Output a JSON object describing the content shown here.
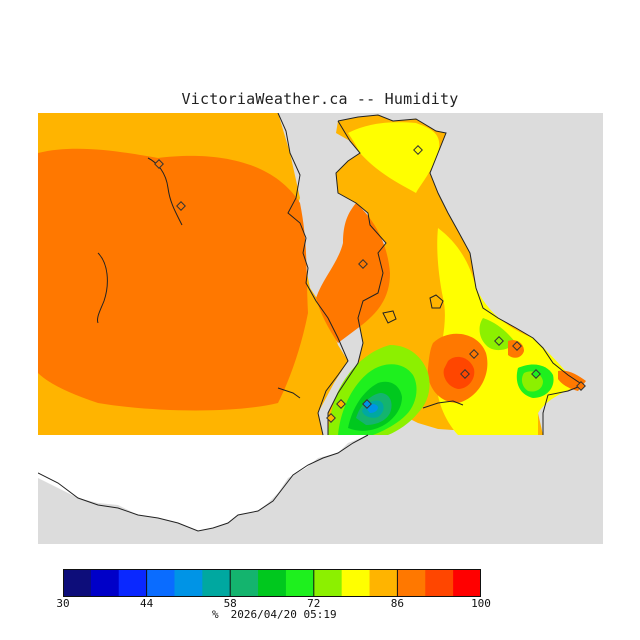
{
  "title": "VictoriaWeather.ca -- Humidity",
  "legend": {
    "colors": [
      "#0d0d7a",
      "#0000c8",
      "#0a28ff",
      "#0a6cff",
      "#0094e6",
      "#00a8a0",
      "#14b46e",
      "#00c81e",
      "#1ef01e",
      "#8cf000",
      "#ffff00",
      "#ffb400",
      "#ff7800",
      "#ff4600",
      "#ff0000"
    ],
    "ticks": [
      "30",
      "44",
      "58",
      "72",
      "86",
      "100"
    ],
    "unit": "%",
    "timestamp": "2026/04/20 05:19"
  }
}
